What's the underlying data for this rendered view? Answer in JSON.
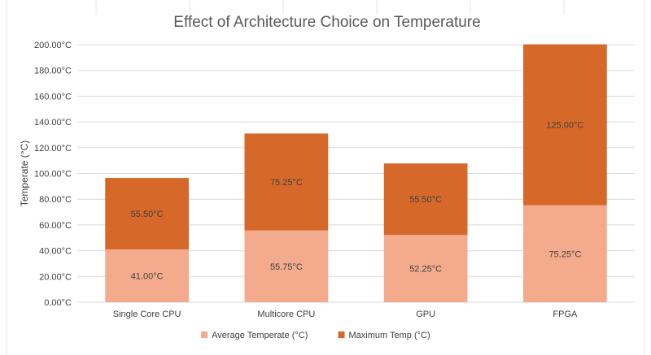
{
  "chart_data": {
    "type": "bar",
    "stacked": true,
    "title": "Effect of Architecture Choice on Temperature",
    "ylabel": "Temperate (°C)",
    "xlabel": "",
    "categories": [
      "Single Core CPU",
      "Multicore CPU",
      "GPU",
      "FPGA"
    ],
    "ylim": [
      0,
      200
    ],
    "yticks": [
      0,
      20,
      40,
      60,
      80,
      100,
      120,
      140,
      160,
      180,
      200
    ],
    "ytick_labels": [
      "0.00°C",
      "20.00°C",
      "40.00°C",
      "60.00°C",
      "80.00°C",
      "100.00°C",
      "120.00°C",
      "140.00°C",
      "160.00°C",
      "180.00°C",
      "200.00°C"
    ],
    "grid": true,
    "legend": "bottom",
    "series": [
      {
        "name": "Average Temperate (°C)",
        "color": "#f4aa8c",
        "values": [
          41.0,
          55.75,
          52.25,
          75.25
        ],
        "labels": [
          "41.00°C",
          "55.75°C",
          "52.25°C",
          "75.25°C"
        ]
      },
      {
        "name": "Maximum Temp (°C)",
        "color": "#d6692a",
        "values": [
          55.5,
          75.25,
          55.5,
          125.0
        ],
        "labels": [
          "55.50°C",
          "75.25°C",
          "55.50°C",
          "125.00°C"
        ]
      }
    ]
  }
}
